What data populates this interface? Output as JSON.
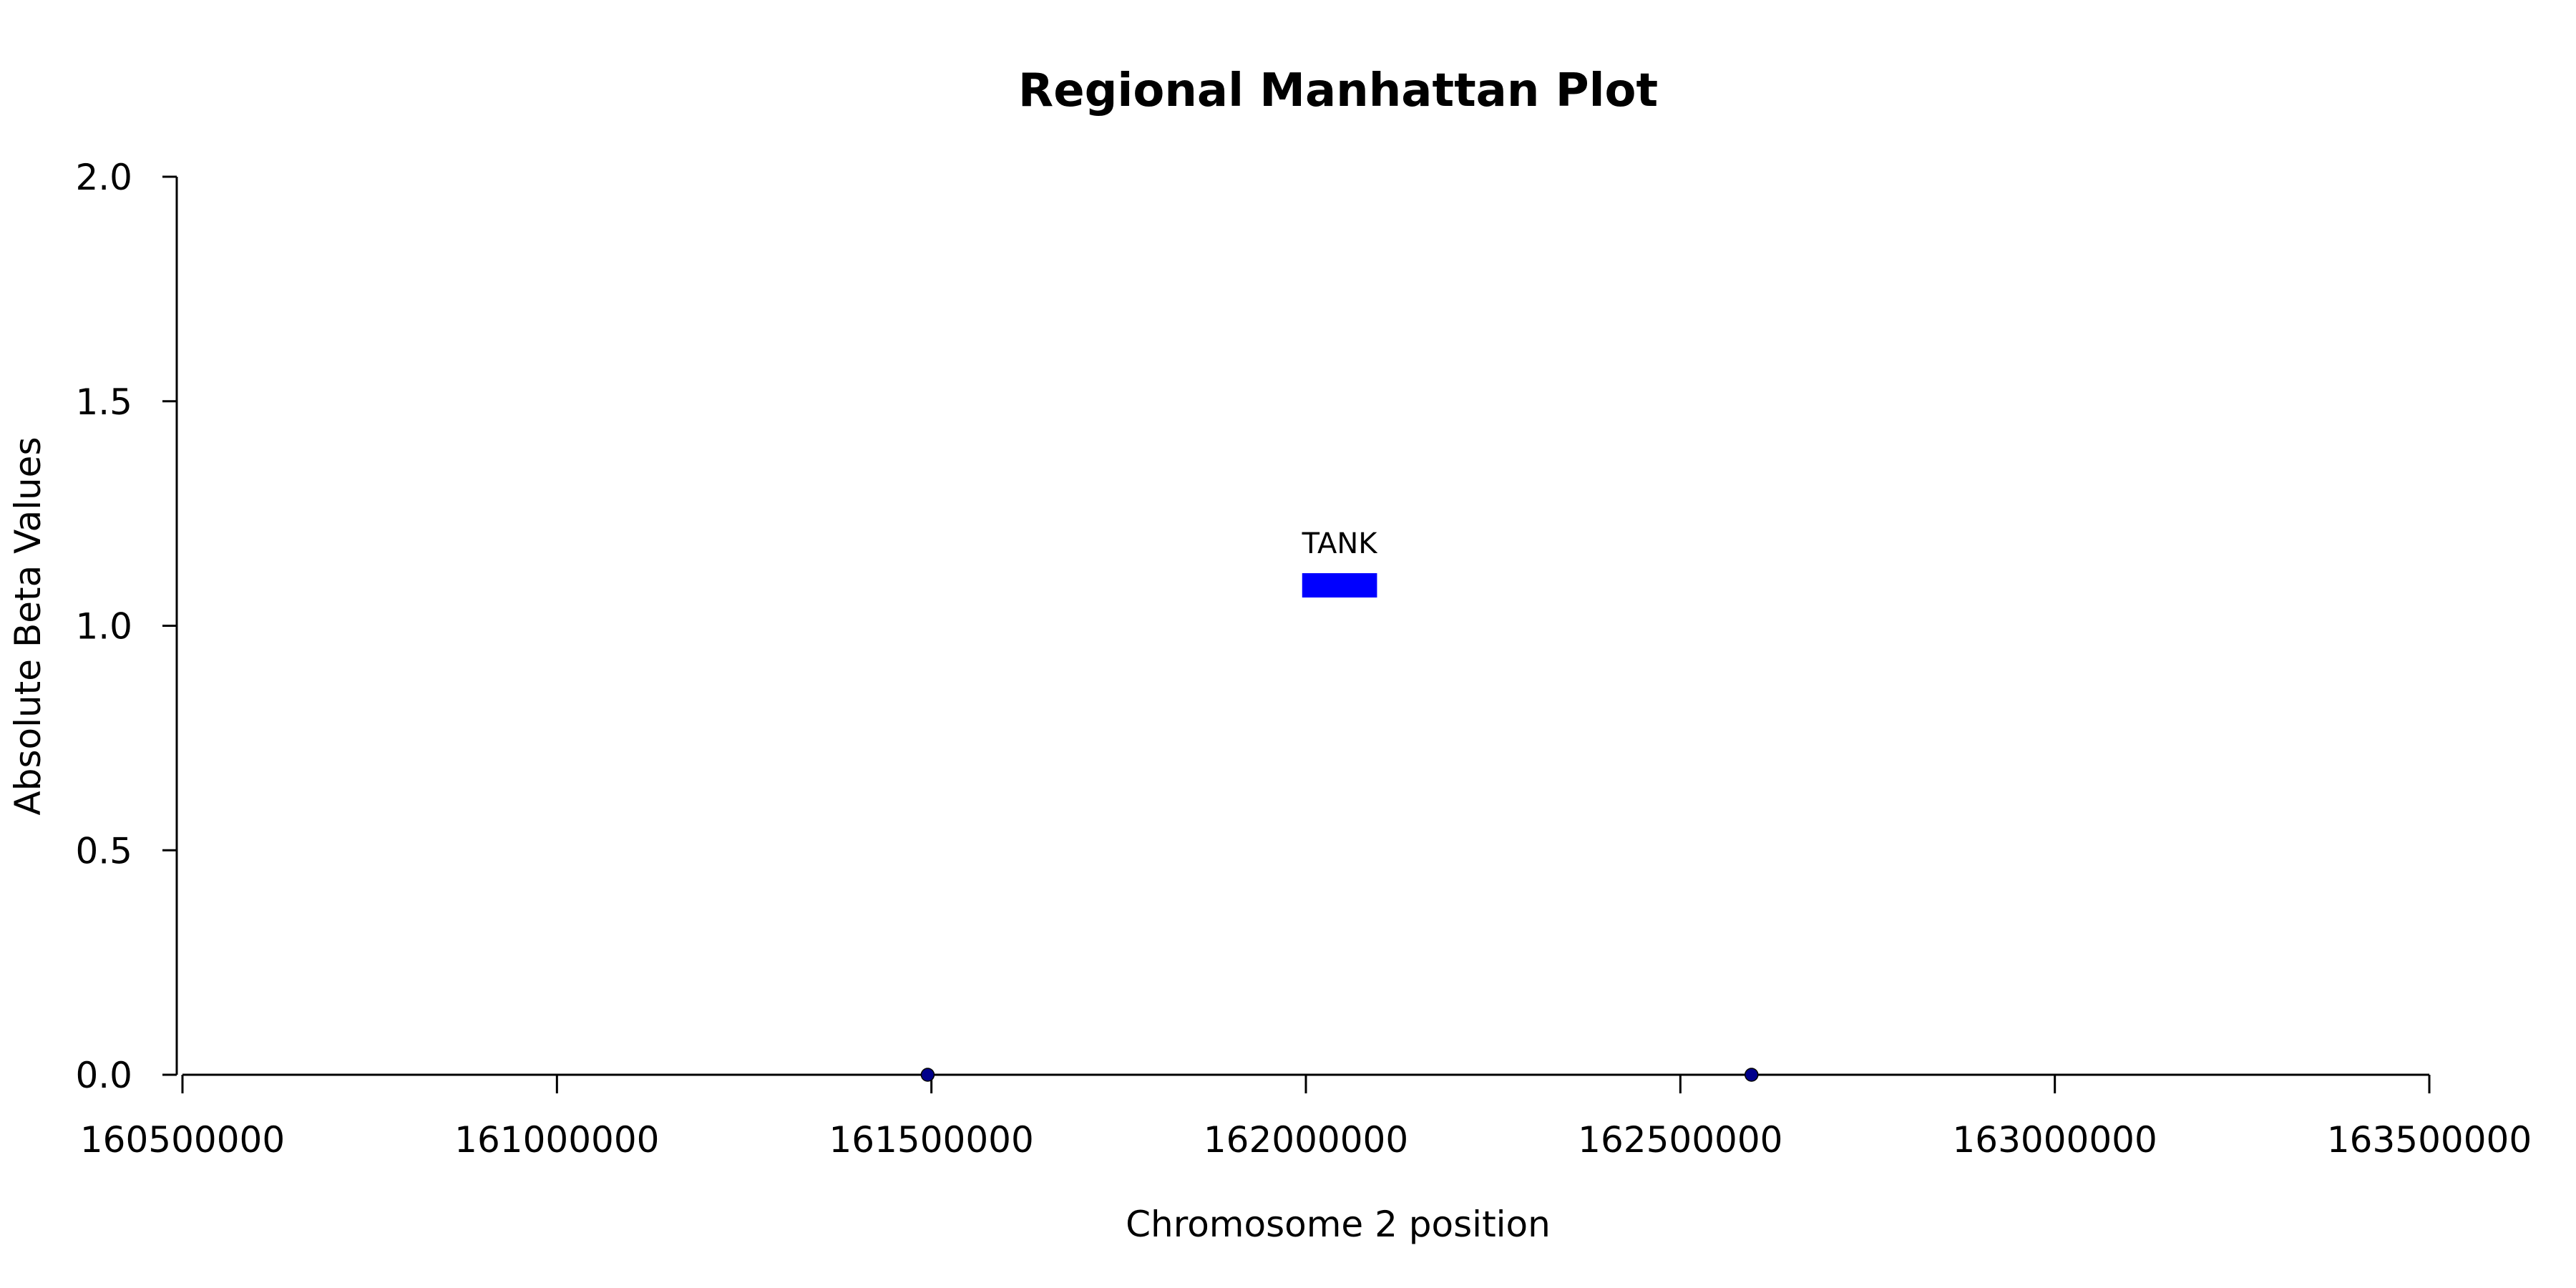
{
  "chart_data": {
    "type": "scatter",
    "title": "Regional Manhattan Plot",
    "xlabel": "Chromosome 2 position",
    "ylabel": "Absolute Beta Values",
    "xlim": [
      160500000,
      163500000
    ],
    "ylim": [
      0,
      2
    ],
    "x_ticks": [
      160500000,
      161000000,
      161500000,
      162000000,
      162500000,
      163000000,
      163500000
    ],
    "x_tick_labels": [
      "160500000",
      "161000000",
      "161500000",
      "162000000",
      "162500000",
      "163000000",
      "163500000"
    ],
    "y_ticks": [
      0,
      0.5,
      1,
      1.5,
      2
    ],
    "y_tick_labels": [
      "0.0",
      "0.5",
      "1.0",
      "1.5",
      "2.0"
    ],
    "grid": false,
    "points": [
      {
        "x": 161495000,
        "y": 0
      },
      {
        "x": 162595000,
        "y": 0
      }
    ],
    "point_color": "#00008B",
    "genes": [
      {
        "name": "TANK",
        "start": 161995000,
        "end": 162095000,
        "y": 1.09,
        "color": "#0000FF"
      }
    ]
  }
}
